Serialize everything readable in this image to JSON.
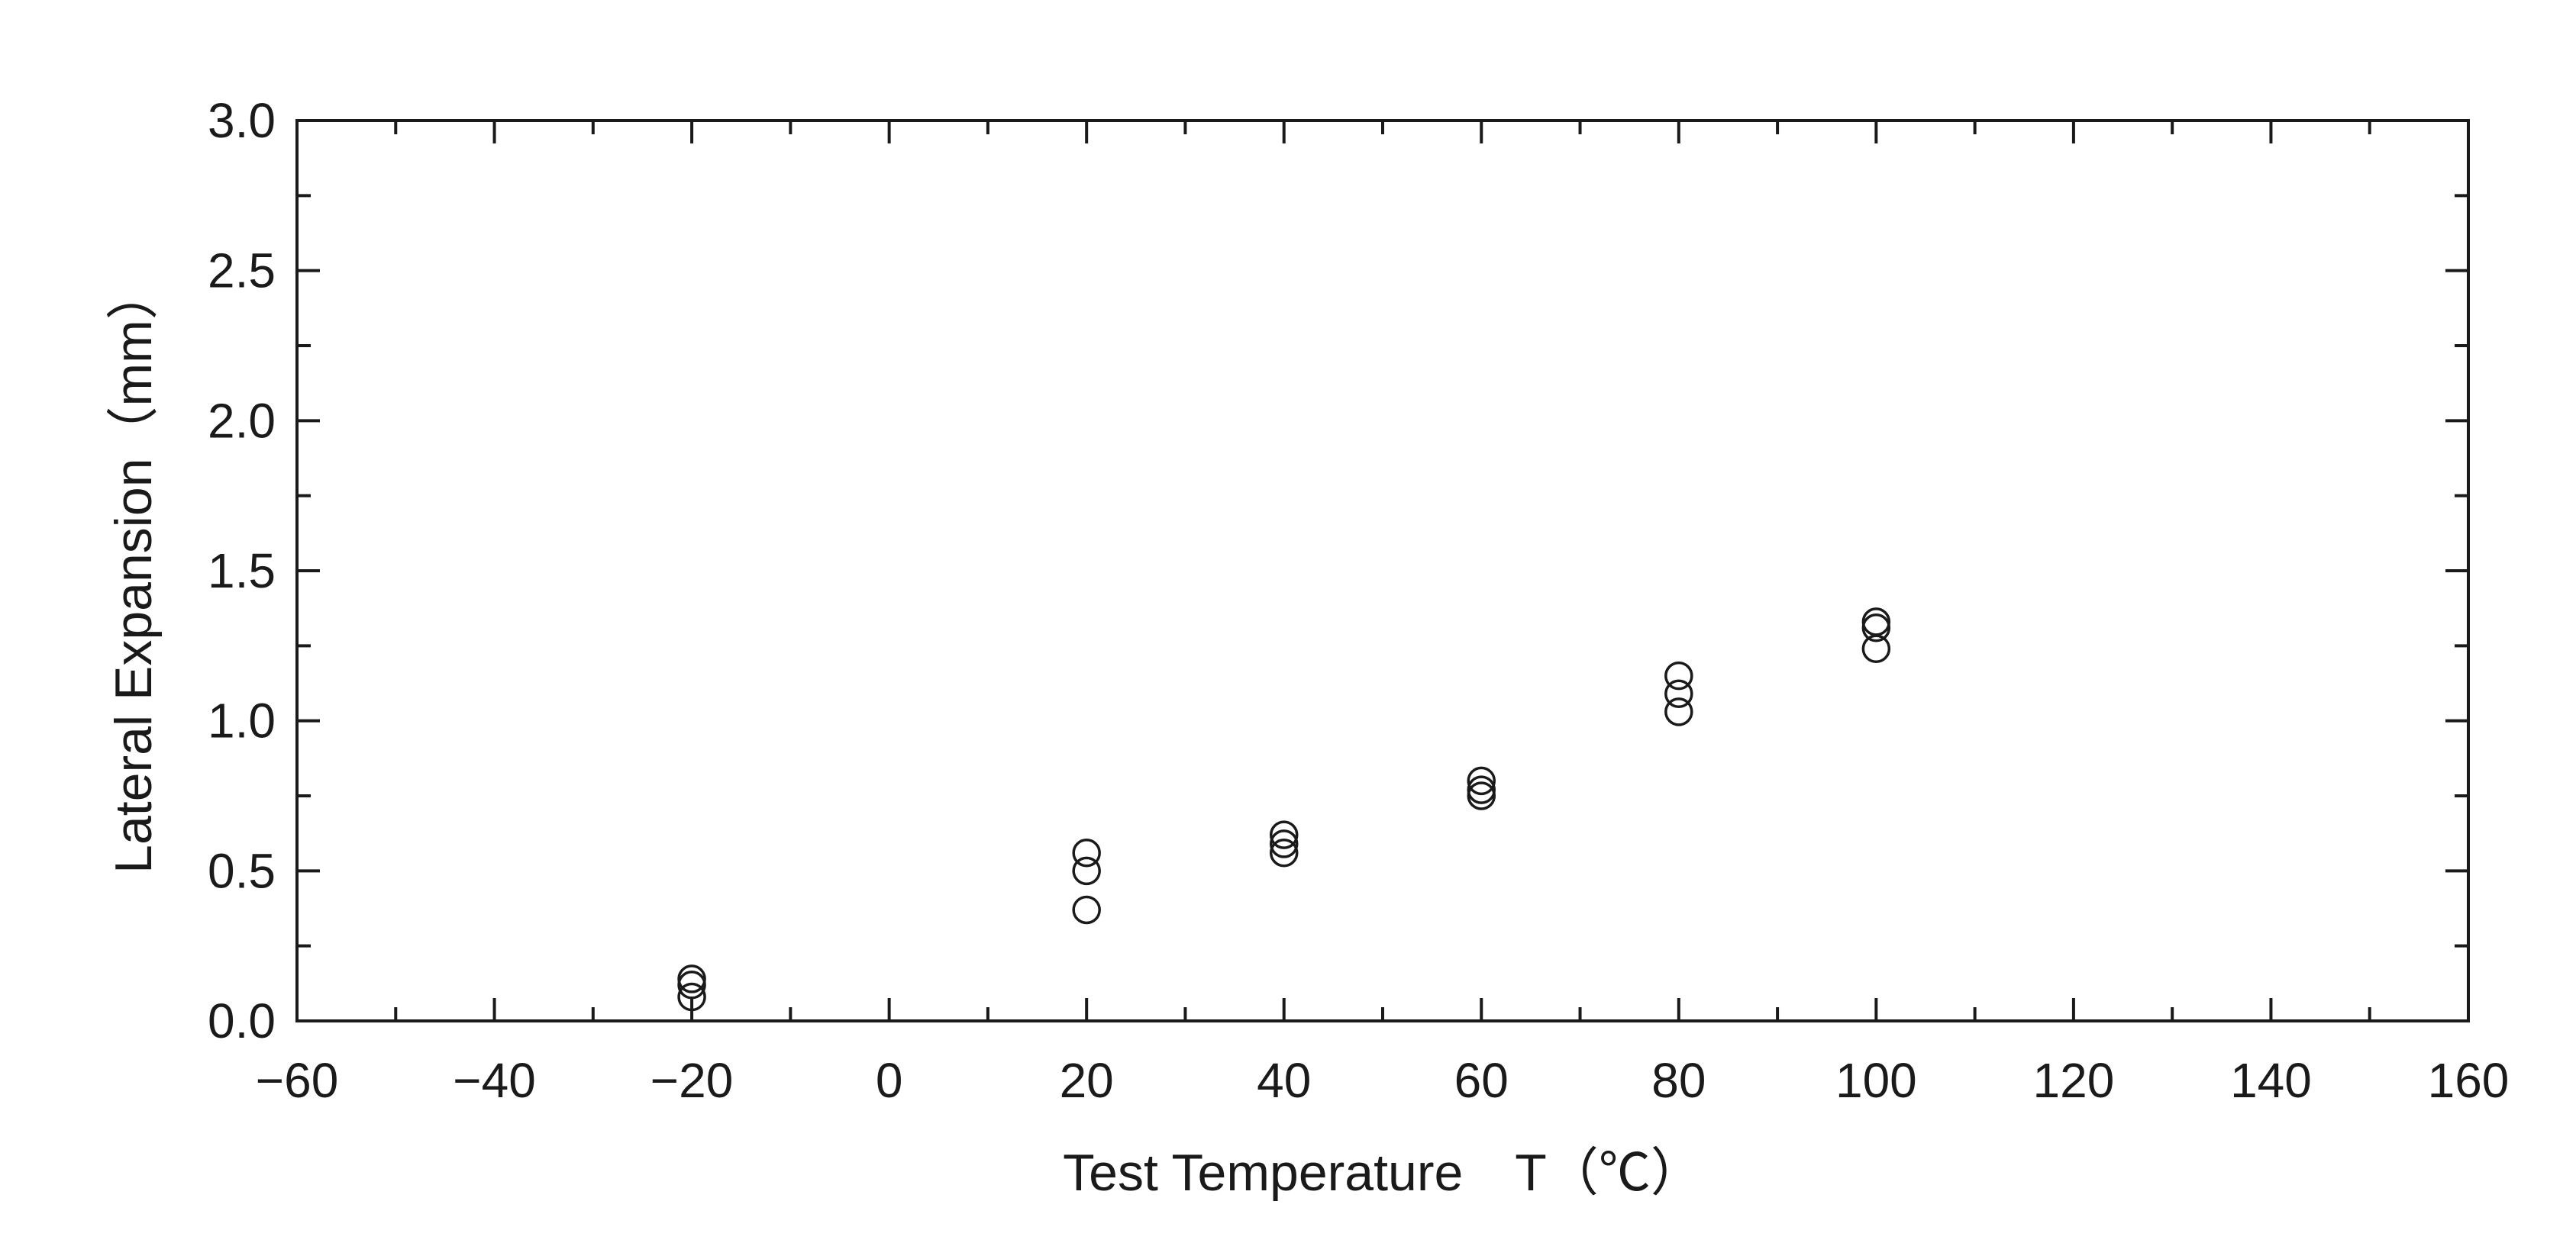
{
  "chart_data": {
    "type": "scatter",
    "title": "",
    "xlabel": "Test Temperature　T（℃）",
    "ylabel": "Lateral Expansion（mm）",
    "xlim": [
      -60,
      160
    ],
    "ylim": [
      0,
      3.0
    ],
    "x_ticks": [
      -60,
      -40,
      -20,
      0,
      20,
      40,
      60,
      80,
      100,
      120,
      140,
      160
    ],
    "x_tick_labels": [
      "−60",
      "−40",
      "−20",
      "0",
      "20",
      "40",
      "60",
      "80",
      "100",
      "120",
      "140",
      "160"
    ],
    "y_ticks": [
      0,
      0.5,
      1.0,
      1.5,
      2.0,
      2.5,
      3.0
    ],
    "y_tick_labels": [
      "0.0",
      "0.5",
      "1.0",
      "1.5",
      "2.0",
      "2.5",
      "3.0"
    ],
    "grid": false,
    "marker": "open-circle",
    "colors": {
      "axis": "#1a1a1a",
      "marker": "#1a1a1a"
    },
    "points": [
      {
        "x": -20,
        "y": 0.14
      },
      {
        "x": -20,
        "y": 0.12
      },
      {
        "x": -20,
        "y": 0.08
      },
      {
        "x": 20,
        "y": 0.56
      },
      {
        "x": 20,
        "y": 0.5
      },
      {
        "x": 20,
        "y": 0.37
      },
      {
        "x": 40,
        "y": 0.62
      },
      {
        "x": 40,
        "y": 0.59
      },
      {
        "x": 40,
        "y": 0.56
      },
      {
        "x": 60,
        "y": 0.8
      },
      {
        "x": 60,
        "y": 0.77
      },
      {
        "x": 60,
        "y": 0.75
      },
      {
        "x": 80,
        "y": 1.15
      },
      {
        "x": 80,
        "y": 1.09
      },
      {
        "x": 80,
        "y": 1.03
      },
      {
        "x": 100,
        "y": 1.33
      },
      {
        "x": 100,
        "y": 1.31
      },
      {
        "x": 100,
        "y": 1.24
      }
    ]
  }
}
